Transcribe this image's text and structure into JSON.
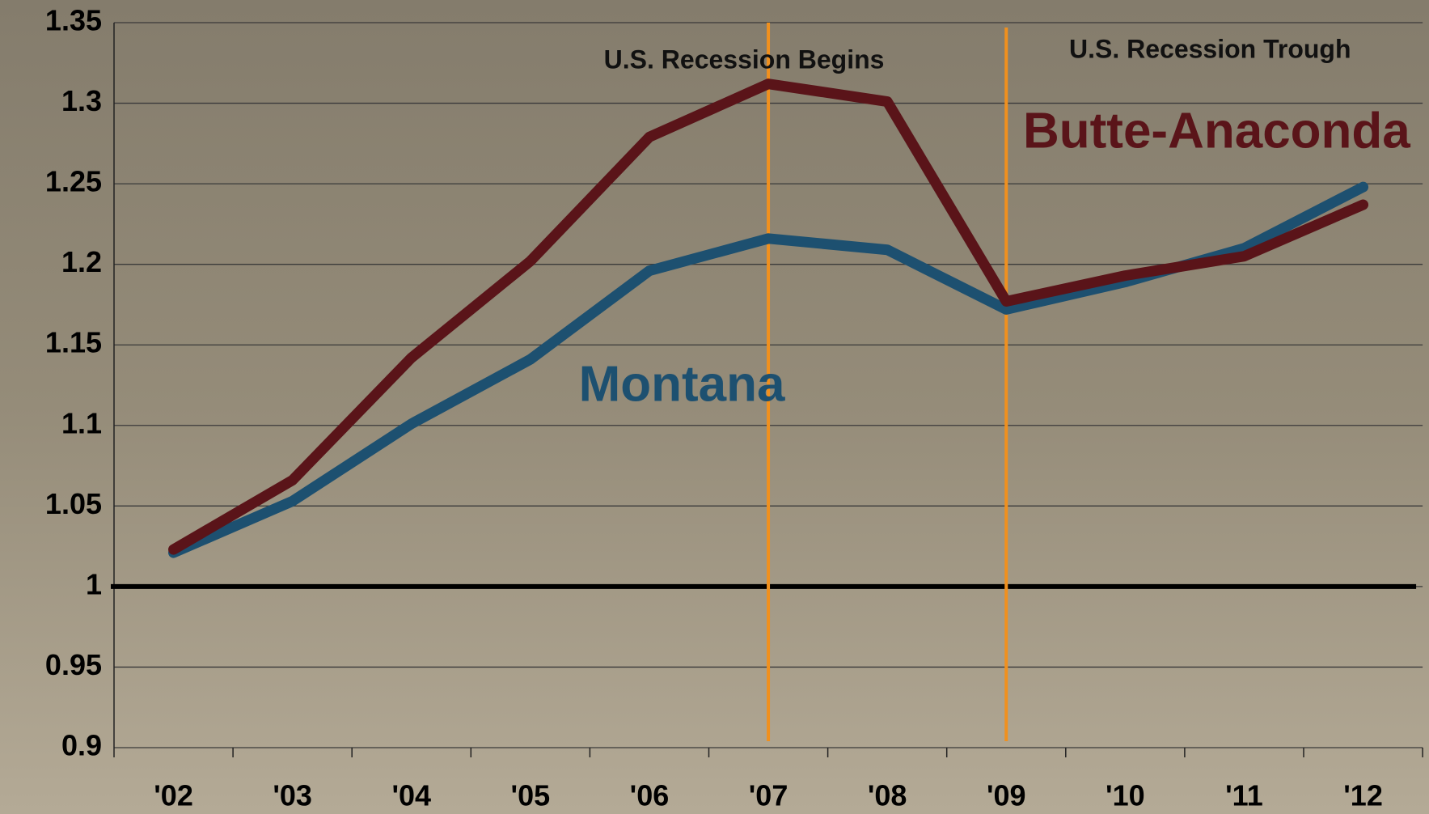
{
  "chart_data": {
    "type": "line",
    "categories": [
      "'02",
      "'03",
      "'04",
      "'05",
      "'06",
      "'07",
      "'08",
      "'09",
      "'10",
      "'11",
      "'12"
    ],
    "series": [
      {
        "name": "Butte-Anaconda",
        "color": "#5a1419",
        "values": [
          1.023,
          1.066,
          1.142,
          1.202,
          1.279,
          1.312,
          1.301,
          1.177,
          1.193,
          1.205,
          1.237
        ]
      },
      {
        "name": "Montana",
        "color": "#1d5070",
        "values": [
          1.021,
          1.053,
          1.101,
          1.141,
          1.196,
          1.216,
          1.209,
          1.172,
          1.189,
          1.21,
          1.248
        ]
      }
    ],
    "ylim": [
      0.9,
      1.35
    ],
    "yticks": [
      0.9,
      0.95,
      1,
      1.05,
      1.1,
      1.15,
      1.2,
      1.25,
      1.3,
      1.35
    ],
    "grid": true,
    "reference_line": 1,
    "annotations": [
      {
        "x": "'07",
        "text": "U.S. Recession Begins",
        "color": "#f0901e"
      },
      {
        "x": "'09",
        "text": "U.S. Recession Trough",
        "color": "#f0901e"
      }
    ]
  }
}
